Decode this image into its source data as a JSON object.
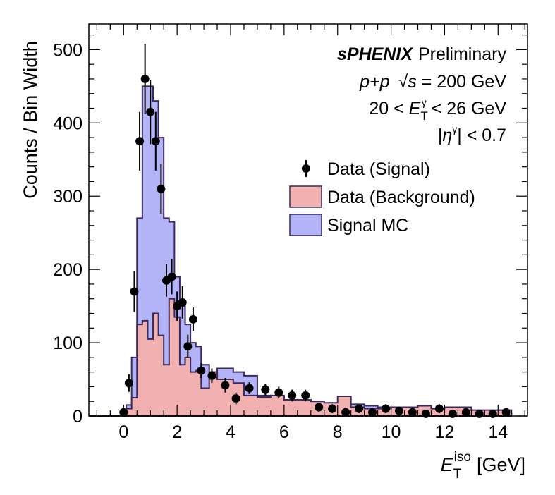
{
  "chart_data": {
    "type": "histogram",
    "xlabel": "E_T^iso [GeV]",
    "xlabel_parts": {
      "main": "E",
      "sub": "T",
      "sup": "iso",
      "unit": "[GeV]"
    },
    "ylabel": "Counts / Bin Width",
    "xlim": [
      -1.3,
      15.1
    ],
    "ylim": [
      0,
      535
    ],
    "x_ticks": [
      0,
      2,
      4,
      6,
      8,
      10,
      12,
      14
    ],
    "y_ticks": [
      0,
      100,
      200,
      300,
      400,
      500
    ],
    "annotations": {
      "brand": "sPHENIX",
      "status": "Preliminary",
      "line2_a": "p+p",
      "line2_b": "s",
      "line2_c": " = 200 GeV",
      "line3_a": "20 <  ",
      "line3_b": "E",
      "line3_sub": "T",
      "line3_sup": "γ",
      "line3_c": " < 26 GeV",
      "line4_a": "|",
      "line4_b": "η",
      "line4_sup": "γ",
      "line4_c": "| < 0.7"
    },
    "legend": [
      {
        "label": "Data (Signal)",
        "kind": "marker",
        "color": "#000000"
      },
      {
        "label": "Data (Background)",
        "kind": "box",
        "fill": "#f2b1b1",
        "edge": "#3b2a5c"
      },
      {
        "label": "Signal MC",
        "kind": "box",
        "fill": "#b3b3f7",
        "edge": "#3b2a5c"
      }
    ],
    "bin_edges": [
      -0.1,
      0.1,
      0.3,
      0.5,
      0.7,
      0.9,
      1.1,
      1.3,
      1.5,
      1.7,
      1.9,
      2.1,
      2.3,
      2.5,
      2.7,
      2.9,
      3.2,
      3.5,
      3.8,
      4.1,
      4.5,
      5.0,
      5.5,
      6.0,
      6.5,
      7.0,
      7.5,
      8.0,
      8.5,
      9.0,
      9.5,
      10.0,
      10.5,
      11.0,
      11.5,
      12.0,
      12.5,
      13.0,
      13.5,
      14.0,
      14.5
    ],
    "series": [
      {
        "name": "Signal MC",
        "fill": "#b3b3f7",
        "edge": "#3b2a5c",
        "values": [
          0,
          15,
          80,
          270,
          450,
          450,
          430,
          380,
          270,
          265,
          190,
          150,
          125,
          100,
          95,
          70,
          60,
          65,
          65,
          60,
          55,
          28,
          26,
          22,
          22,
          20,
          16,
          16,
          16,
          14,
          12,
          12,
          12,
          12,
          10,
          10,
          8,
          6,
          5,
          5
        ]
      },
      {
        "name": "Data (Background)",
        "fill": "#f2b1b1",
        "edge": "#3b2a5c",
        "values": [
          0,
          10,
          25,
          125,
          130,
          105,
          140,
          110,
          70,
          160,
          135,
          70,
          80,
          60,
          62,
          38,
          60,
          50,
          50,
          45,
          28,
          26,
          28,
          22,
          22,
          20,
          18,
          27,
          12,
          10,
          10,
          12,
          12,
          14,
          10,
          12,
          12,
          8,
          8,
          8
        ]
      }
    ],
    "data_points": {
      "name": "Data (Signal)",
      "x": [
        0.0,
        0.2,
        0.4,
        0.6,
        0.8,
        1.0,
        1.2,
        1.4,
        1.6,
        1.8,
        2.0,
        2.2,
        2.4,
        2.6,
        2.9,
        3.3,
        3.8,
        4.2,
        4.7,
        5.3,
        5.8,
        6.3,
        6.8,
        7.3,
        7.8,
        8.3,
        8.8,
        9.3,
        9.8,
        10.3,
        10.8,
        11.3,
        11.8,
        12.3,
        12.8,
        13.3,
        13.8,
        14.3
      ],
      "y": [
        5,
        45,
        170,
        375,
        460,
        415,
        375,
        310,
        185,
        190,
        150,
        155,
        95,
        132,
        62,
        55,
        42,
        24,
        38,
        36,
        32,
        28,
        28,
        12,
        10,
        5,
        10,
        5,
        10,
        7,
        5,
        3,
        10,
        3,
        5,
        3,
        3,
        5
      ],
      "yerr": [
        3,
        12,
        28,
        40,
        48,
        44,
        40,
        34,
        22,
        24,
        20,
        22,
        16,
        16,
        10,
        10,
        10,
        8,
        8,
        8,
        8,
        8,
        8,
        6,
        6,
        4,
        6,
        4,
        6,
        4,
        4,
        3,
        6,
        3,
        4,
        3,
        3,
        4
      ]
    }
  }
}
